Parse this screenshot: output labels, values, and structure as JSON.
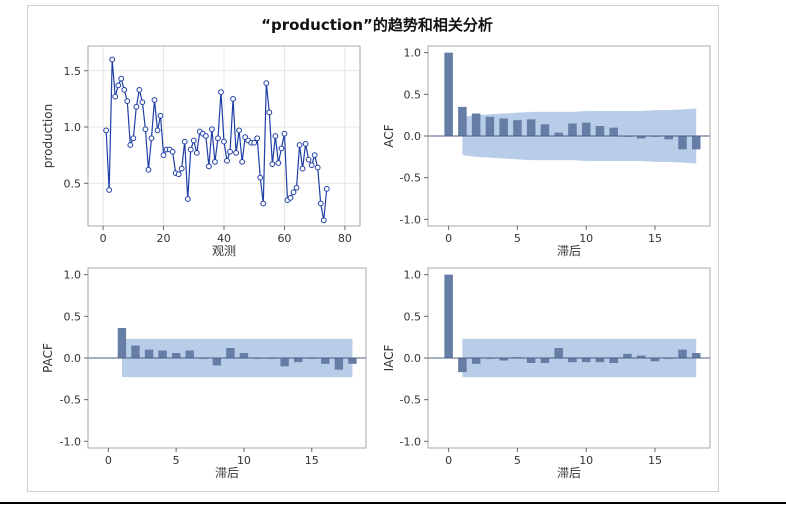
{
  "title": "“production”的趋势和相关分析",
  "colors": {
    "series": "#1f3fa6",
    "bar": "#667ea6",
    "band": "#b8cde8",
    "grid": "#e6e6e6",
    "axis": "#666666",
    "plot_frame": "#aaaaaa"
  },
  "chart_data": [
    {
      "id": "trend",
      "type": "line",
      "ylabel": "production",
      "xlabel": "观测",
      "xlim": [
        -5,
        85
      ],
      "ylim": [
        0.12,
        1.72
      ],
      "xticks": [
        0,
        20,
        40,
        60,
        80
      ],
      "yticks": [
        0.5,
        1.0,
        1.5
      ],
      "ytick_labels": [
        "0.5",
        "1.0",
        "1.5"
      ],
      "grid": true,
      "markers": "open-circle",
      "x": [
        1,
        2,
        3,
        4,
        5,
        6,
        7,
        8,
        9,
        10,
        11,
        12,
        13,
        14,
        15,
        16,
        17,
        18,
        19,
        20,
        21,
        22,
        23,
        24,
        25,
        26,
        27,
        28,
        29,
        30,
        31,
        32,
        33,
        34,
        35,
        36,
        37,
        38,
        39,
        40,
        41,
        42,
        43,
        44,
        45,
        46,
        47,
        48,
        49,
        50,
        51,
        52,
        53,
        54,
        55,
        56,
        57,
        58,
        59,
        60,
        61,
        62,
        63,
        64,
        65,
        66,
        67,
        68,
        69,
        70,
        71,
        72,
        73,
        74
      ],
      "y": [
        0.97,
        0.44,
        1.6,
        1.27,
        1.37,
        1.43,
        1.33,
        1.23,
        0.84,
        0.9,
        1.18,
        1.33,
        1.22,
        0.98,
        0.62,
        0.9,
        1.24,
        0.97,
        1.1,
        0.75,
        0.8,
        0.8,
        0.78,
        0.59,
        0.58,
        0.63,
        0.87,
        0.36,
        0.8,
        0.88,
        0.77,
        0.96,
        0.94,
        0.92,
        0.65,
        0.98,
        0.69,
        0.9,
        1.31,
        0.87,
        0.7,
        0.78,
        1.25,
        0.77,
        0.97,
        0.69,
        0.91,
        0.88,
        0.86,
        0.86,
        0.9,
        0.55,
        0.32,
        1.39,
        1.13,
        0.67,
        0.92,
        0.68,
        0.81,
        0.94,
        0.35,
        0.37,
        0.42,
        0.46,
        0.84,
        0.63,
        0.85,
        0.71,
        0.66,
        0.75,
        0.64,
        0.32,
        0.17,
        0.45
      ]
    },
    {
      "id": "acf",
      "type": "bar",
      "ylabel": "ACF",
      "xlabel": "滞后",
      "xlim": [
        -1.5,
        19
      ],
      "ylim": [
        -1.08,
        1.08
      ],
      "xticks": [
        0,
        5,
        10,
        15
      ],
      "yticks": [
        -1.0,
        -0.5,
        0.0,
        0.5,
        1.0
      ],
      "ytick_labels": [
        "-1.0",
        "-0.5",
        "0.0",
        "0.5",
        "1.0"
      ],
      "grid": false,
      "lags": [
        0,
        1,
        2,
        3,
        4,
        5,
        6,
        7,
        8,
        9,
        10,
        11,
        12,
        13,
        14,
        15,
        16,
        17,
        18
      ],
      "values": [
        1.0,
        0.35,
        0.27,
        0.23,
        0.21,
        0.19,
        0.2,
        0.14,
        0.04,
        0.15,
        0.16,
        0.12,
        0.1,
        0.0,
        -0.03,
        0.0,
        -0.04,
        -0.16,
        -0.16
      ],
      "band_lags": [
        1,
        2,
        3,
        4,
        5,
        6,
        7,
        8,
        9,
        10,
        11,
        12,
        13,
        14,
        15,
        16,
        17,
        18
      ],
      "band_upper": [
        0.23,
        0.25,
        0.26,
        0.27,
        0.28,
        0.29,
        0.29,
        0.29,
        0.29,
        0.3,
        0.3,
        0.3,
        0.3,
        0.3,
        0.31,
        0.31,
        0.32,
        0.33
      ],
      "band_lower": [
        -0.23,
        -0.25,
        -0.26,
        -0.27,
        -0.28,
        -0.29,
        -0.29,
        -0.29,
        -0.29,
        -0.3,
        -0.3,
        -0.3,
        -0.3,
        -0.3,
        -0.31,
        -0.31,
        -0.32,
        -0.33
      ]
    },
    {
      "id": "pacf",
      "type": "bar",
      "ylabel": "PACF",
      "xlabel": "滞后",
      "xlim": [
        -1.5,
        19
      ],
      "ylim": [
        -1.08,
        1.08
      ],
      "xticks": [
        0,
        5,
        10,
        15
      ],
      "yticks": [
        -1.0,
        -0.5,
        0.0,
        0.5,
        1.0
      ],
      "ytick_labels": [
        "-1.0",
        "-0.5",
        "0.0",
        "0.5",
        "1.0"
      ],
      "grid": false,
      "lags": [
        1,
        2,
        3,
        4,
        5,
        6,
        7,
        8,
        9,
        10,
        11,
        12,
        13,
        14,
        15,
        16,
        17,
        18
      ],
      "values": [
        0.36,
        0.15,
        0.1,
        0.09,
        0.06,
        0.09,
        0.0,
        -0.09,
        0.12,
        0.06,
        0.0,
        0.0,
        -0.1,
        -0.05,
        0.0,
        -0.07,
        -0.14,
        -0.07
      ],
      "band_lags": [
        1,
        18
      ],
      "band_upper": [
        0.23,
        0.23
      ],
      "band_lower": [
        -0.23,
        -0.23
      ]
    },
    {
      "id": "iacf",
      "type": "bar",
      "ylabel": "IACF",
      "xlabel": "滞后",
      "xlim": [
        -1.5,
        19
      ],
      "ylim": [
        -1.08,
        1.08
      ],
      "xticks": [
        0,
        5,
        10,
        15
      ],
      "yticks": [
        -1.0,
        -0.5,
        0.0,
        0.5,
        1.0
      ],
      "ytick_labels": [
        "-1.0",
        "-0.5",
        "0.0",
        "0.5",
        "1.0"
      ],
      "grid": false,
      "lags": [
        0,
        1,
        2,
        3,
        4,
        5,
        6,
        7,
        8,
        9,
        10,
        11,
        12,
        13,
        14,
        15,
        16,
        17,
        18
      ],
      "values": [
        1.0,
        -0.17,
        -0.07,
        0.0,
        -0.03,
        0.01,
        -0.06,
        -0.06,
        0.12,
        -0.05,
        -0.05,
        -0.05,
        -0.06,
        0.05,
        0.03,
        -0.04,
        0.0,
        0.1,
        0.06
      ],
      "band_lags": [
        1,
        18
      ],
      "band_upper": [
        0.23,
        0.23
      ],
      "band_lower": [
        -0.23,
        -0.23
      ]
    }
  ]
}
